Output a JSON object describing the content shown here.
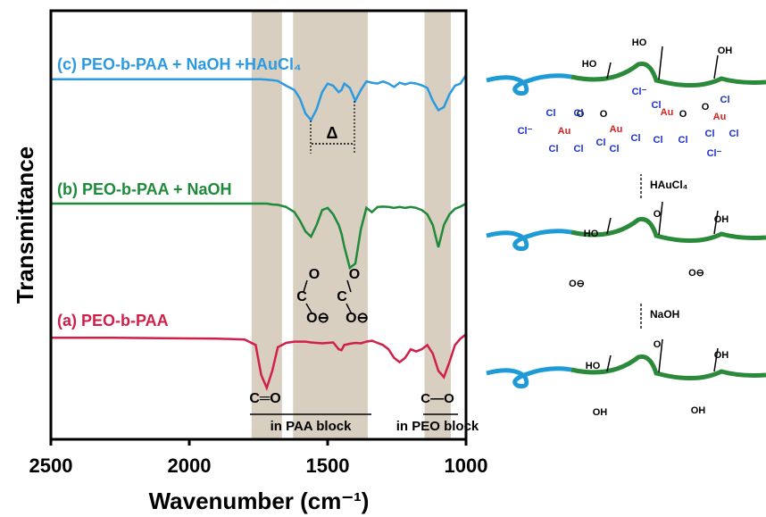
{
  "chart_data": {
    "type": "line",
    "xlabel": "Wavenumber (cm⁻¹)",
    "ylabel": "Transmittance",
    "xlim": [
      2500,
      1000
    ],
    "xticks": [
      2500,
      2000,
      1500,
      1000
    ],
    "ylim": [
      0,
      100
    ],
    "x": [
      2500,
      2300,
      2100,
      1900,
      1800,
      1760,
      1740,
      1720,
      1700,
      1680,
      1650,
      1620,
      1600,
      1580,
      1560,
      1540,
      1520,
      1500,
      1480,
      1460,
      1450,
      1440,
      1420,
      1400,
      1380,
      1360,
      1340,
      1320,
      1300,
      1280,
      1260,
      1240,
      1220,
      1200,
      1180,
      1160,
      1140,
      1120,
      1100,
      1080,
      1060,
      1040,
      1020,
      1000
    ],
    "series": [
      {
        "name": "(c) PEO-b-PAA + NaOH +HAuCl₄",
        "color": "#2b9ae0",
        "values": [
          84,
          84,
          84,
          84,
          84,
          84,
          84,
          83.9,
          83.8,
          83.6,
          82.5,
          81.5,
          79.5,
          76,
          74.5,
          77,
          81,
          83,
          82.5,
          81,
          81.5,
          83,
          82,
          79,
          81.5,
          83.5,
          83.2,
          83,
          83.5,
          83,
          82.2,
          83.2,
          82.8,
          83.2,
          83,
          82.6,
          82,
          79,
          76.8,
          77.5,
          80.5,
          82.5,
          83,
          85
        ]
      },
      {
        "name": "(b) PEO-b-PAA + NaOH",
        "color": "#1f8a3a",
        "values": [
          55,
          55,
          55,
          55,
          55,
          55,
          55,
          55,
          54.8,
          54.7,
          54.2,
          53,
          51,
          48.5,
          47.3,
          50,
          53.5,
          54,
          52.5,
          50,
          48,
          45,
          40,
          41,
          49,
          54,
          53,
          54.2,
          54.3,
          54.2,
          54,
          54.2,
          54,
          54.2,
          54,
          53.5,
          52.5,
          50,
          44.8,
          50,
          52.5,
          53.8,
          54.3,
          55
        ]
      },
      {
        "name": "(a) PEO-b-PAA",
        "color": "#d01f4a",
        "values": [
          23.7,
          23.7,
          23.6,
          23.5,
          23.3,
          22,
          15,
          12,
          16,
          21.5,
          22.5,
          22.8,
          22.8,
          22.8,
          22.6,
          22.5,
          22.4,
          22.5,
          22.6,
          21,
          20.8,
          22,
          22.3,
          22.5,
          22.4,
          22.8,
          23,
          22.5,
          22,
          21,
          19,
          18,
          19,
          21,
          20.5,
          21,
          22,
          20,
          16,
          14.5,
          18,
          22,
          23.5,
          24.5
        ]
      }
    ],
    "bands": [
      [
        1775,
        1665
      ],
      [
        1625,
        1355
      ],
      [
        1150,
        1055
      ]
    ],
    "band_color": "#d9cfc1",
    "annotations": [
      "C═O",
      "in PAA block",
      "C—O",
      "in PEO block",
      "Δ",
      "O",
      "C",
      "O⊖",
      "O",
      "C",
      "O⊖"
    ]
  },
  "scheme": {
    "reagents": [
      "HAuCl₄",
      "NaOH"
    ],
    "labels": [
      "HO",
      "HO",
      "OH",
      "Cl⁻",
      "O",
      "O",
      "O",
      "O",
      "Au",
      "Cl",
      "Cl",
      "Cl",
      "Cl",
      "Au",
      "Cl",
      "Cl",
      "Cl",
      "Au",
      "Cl",
      "Cl",
      "Cl",
      "Au",
      "Cl",
      "Cl",
      "Cl",
      "Cl⁻",
      "Cl⁻",
      "HO",
      "O",
      "OH",
      "O⊖",
      "O⊖",
      "HO",
      "O",
      "OH",
      "OH",
      "OH"
    ]
  }
}
